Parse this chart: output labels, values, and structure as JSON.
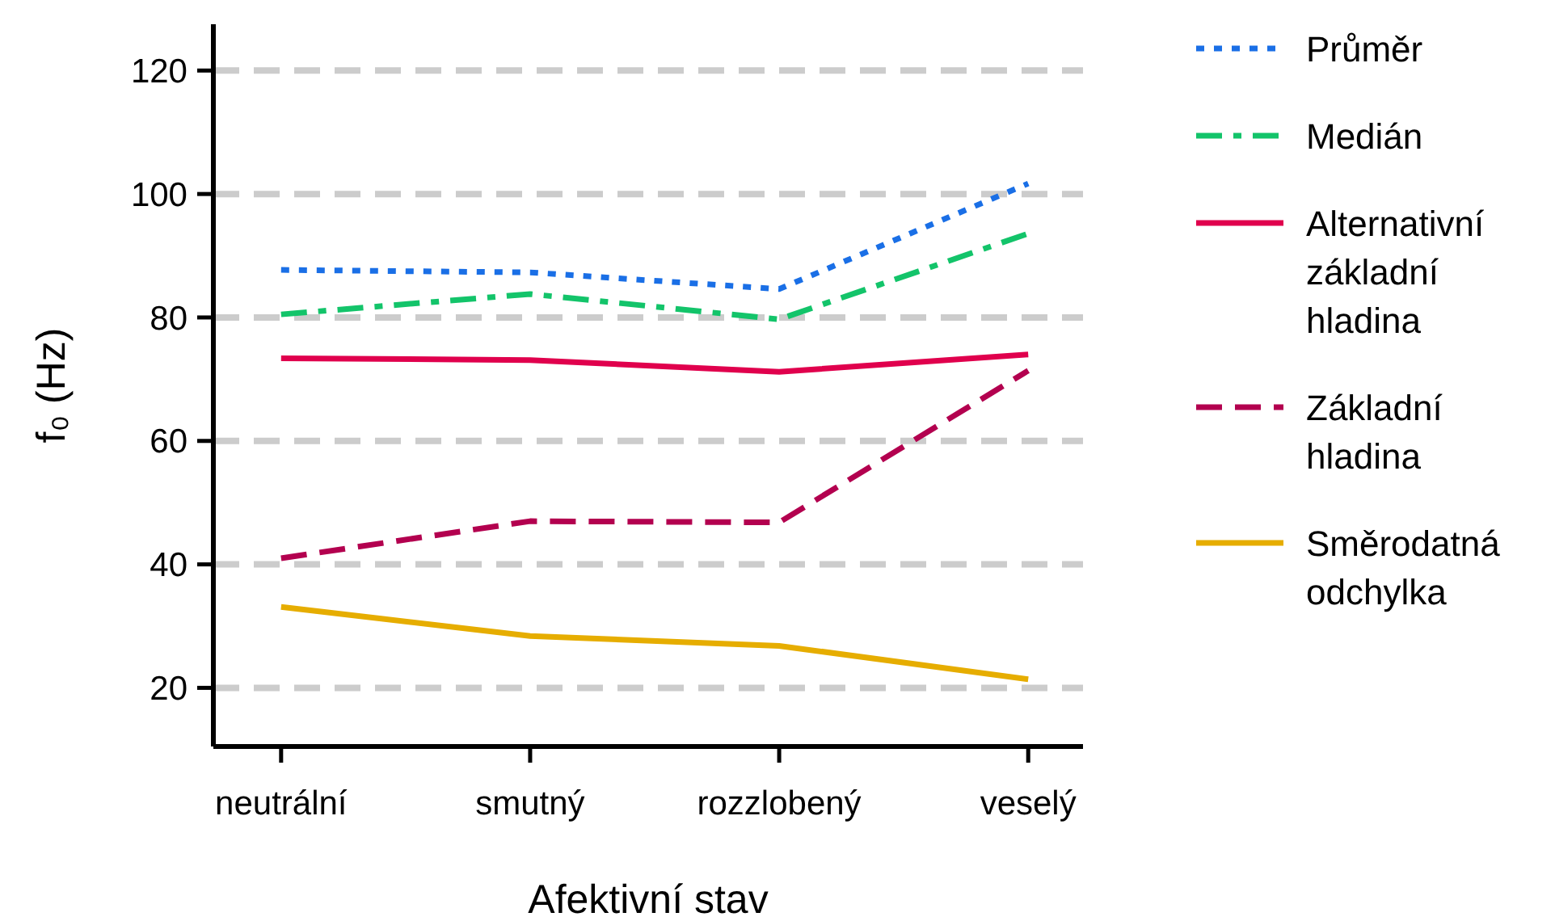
{
  "chart_data": {
    "type": "line",
    "xlabel": "Afektivní stav",
    "ylabel": "f₀ (Hz)",
    "categories": [
      "neutrální",
      "smutný",
      "rozzlobený",
      "veselý"
    ],
    "series": [
      {
        "name": "Průměr",
        "color": "#1a6fe6",
        "line_style": "dotted",
        "values": [
          87.7,
          87.3,
          84.6,
          101.7
        ]
      },
      {
        "name": "Medián",
        "color": "#13c46a",
        "line_style": "dashdot",
        "values": [
          80.5,
          83.8,
          79.7,
          93.6
        ]
      },
      {
        "name": "Alternativní základní hladina",
        "color": "#e0004d",
        "line_style": "solid",
        "values": [
          73.4,
          73.1,
          71.2,
          74.0
        ]
      },
      {
        "name": "Základní hladina",
        "color": "#b3004f",
        "line_style": "dashed",
        "values": [
          41.0,
          47.0,
          46.8,
          71.4
        ]
      },
      {
        "name": "Směrodatná odchylka",
        "color": "#e6ad00",
        "line_style": "solid",
        "values": [
          33.1,
          28.4,
          26.8,
          21.4
        ]
      }
    ],
    "ylim": [
      10.5,
      127.5
    ],
    "yticks": [
      20,
      40,
      60,
      80,
      100,
      120
    ],
    "grid": "y",
    "legend": "right",
    "marker": "none"
  }
}
